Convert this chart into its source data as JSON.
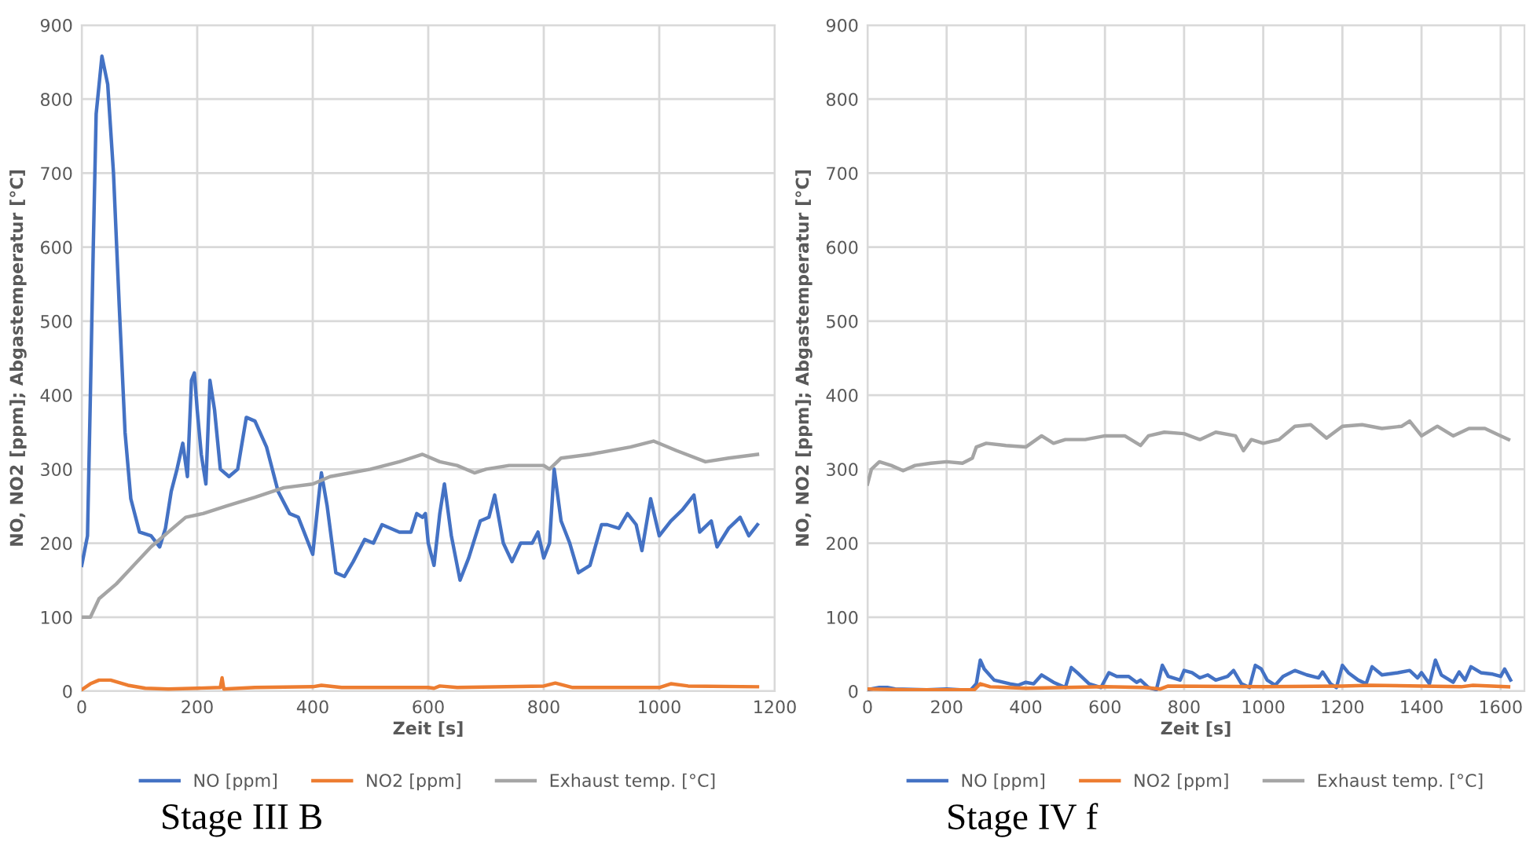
{
  "chart_data": [
    {
      "type": "line",
      "title": "Stage III B",
      "xlabel": "Zeit [s]",
      "ylabel": "NO, NO2 [ppm]; Abgastemperatur [°C]",
      "xlim": [
        0,
        1200
      ],
      "xticks": [
        0,
        200,
        400,
        600,
        800,
        1000,
        1200
      ],
      "ylim": [
        0,
        900
      ],
      "yticks": [
        0,
        100,
        200,
        300,
        400,
        500,
        600,
        700,
        800,
        900
      ],
      "grid": true,
      "legend": "bottom",
      "marker": "none",
      "line_style": "solid",
      "series": [
        {
          "name": "NO [ppm]",
          "color": "#4472c4",
          "x": [
            0,
            10,
            15,
            20,
            25,
            35,
            45,
            55,
            65,
            75,
            85,
            100,
            120,
            135,
            145,
            155,
            165,
            175,
            183,
            190,
            195,
            200,
            207,
            215,
            222,
            230,
            240,
            255,
            270,
            285,
            300,
            320,
            340,
            360,
            375,
            385,
            400,
            410,
            415,
            425,
            440,
            455,
            470,
            490,
            505,
            520,
            535,
            550,
            570,
            580,
            590,
            595,
            600,
            610,
            620,
            628,
            640,
            655,
            670,
            690,
            705,
            715,
            730,
            745,
            760,
            780,
            790,
            800,
            810,
            818,
            830,
            845,
            860,
            880,
            900,
            910,
            930,
            945,
            960,
            970,
            985,
            1000,
            1020,
            1040,
            1060,
            1070,
            1090,
            1100,
            1120,
            1140,
            1155,
            1170
          ],
          "values": [
            170,
            210,
            400,
            600,
            780,
            858,
            820,
            700,
            520,
            350,
            260,
            215,
            210,
            195,
            220,
            270,
            300,
            335,
            290,
            420,
            430,
            380,
            320,
            280,
            420,
            380,
            300,
            290,
            300,
            370,
            365,
            330,
            270,
            240,
            235,
            215,
            185,
            260,
            295,
            250,
            160,
            155,
            175,
            205,
            200,
            225,
            220,
            215,
            215,
            240,
            235,
            240,
            200,
            170,
            240,
            280,
            210,
            150,
            180,
            230,
            235,
            265,
            200,
            175,
            200,
            200,
            215,
            180,
            200,
            300,
            230,
            200,
            160,
            170,
            225,
            225,
            220,
            240,
            225,
            190,
            260,
            210,
            230,
            245,
            265,
            215,
            230,
            195,
            220,
            235,
            210,
            225
          ]
        },
        {
          "name": "NO2 [ppm]",
          "color": "#ed7d31",
          "x": [
            0,
            15,
            30,
            50,
            80,
            110,
            150,
            200,
            240,
            243,
            246,
            300,
            400,
            415,
            450,
            600,
            610,
            620,
            650,
            800,
            820,
            850,
            900,
            1000,
            1020,
            1050,
            1170
          ],
          "values": [
            2,
            10,
            15,
            15,
            8,
            4,
            3,
            4,
            5,
            18,
            3,
            5,
            6,
            8,
            5,
            5,
            4,
            7,
            5,
            7,
            11,
            5,
            5,
            5,
            10,
            7,
            6
          ]
        },
        {
          "name": "Exhaust temp. [°C]",
          "color": "#a5a5a5",
          "x": [
            0,
            15,
            30,
            60,
            90,
            120,
            150,
            180,
            210,
            250,
            300,
            350,
            400,
            430,
            500,
            550,
            590,
            620,
            650,
            680,
            700,
            740,
            800,
            810,
            830,
            880,
            950,
            990,
            1030,
            1080,
            1120,
            1170
          ],
          "values": [
            100,
            100,
            125,
            145,
            170,
            195,
            215,
            235,
            240,
            250,
            262,
            275,
            280,
            290,
            300,
            310,
            320,
            310,
            305,
            295,
            300,
            305,
            305,
            300,
            315,
            320,
            330,
            338,
            325,
            310,
            315,
            320
          ]
        }
      ]
    },
    {
      "type": "line",
      "title": "Stage IV f",
      "xlabel": "Zeit [s]",
      "ylabel": "NO, NO2 [ppm]; Abgastemperatur [°C]",
      "xlim": [
        0,
        1660
      ],
      "xticks": [
        0,
        200,
        400,
        600,
        800,
        1000,
        1200,
        1400,
        1600
      ],
      "ylim": [
        0,
        900
      ],
      "yticks": [
        0,
        100,
        200,
        300,
        400,
        500,
        600,
        700,
        800,
        900
      ],
      "grid": true,
      "legend": "bottom",
      "marker": "none",
      "line_style": "solid",
      "series": [
        {
          "name": "NO [ppm]",
          "color": "#4472c4",
          "x": [
            0,
            30,
            50,
            70,
            150,
            200,
            260,
            275,
            285,
            295,
            320,
            360,
            380,
            400,
            420,
            440,
            470,
            500,
            515,
            530,
            560,
            590,
            610,
            630,
            660,
            680,
            690,
            710,
            730,
            745,
            760,
            790,
            800,
            820,
            840,
            860,
            880,
            910,
            925,
            945,
            965,
            980,
            995,
            1010,
            1030,
            1050,
            1080,
            1110,
            1140,
            1150,
            1170,
            1185,
            1200,
            1215,
            1240,
            1260,
            1275,
            1300,
            1340,
            1370,
            1390,
            1400,
            1420,
            1435,
            1450,
            1480,
            1495,
            1510,
            1525,
            1550,
            1580,
            1600,
            1610,
            1625
          ],
          "values": [
            2,
            5,
            5,
            3,
            2,
            3,
            1,
            10,
            42,
            30,
            15,
            10,
            8,
            12,
            10,
            22,
            12,
            5,
            32,
            25,
            10,
            5,
            25,
            20,
            20,
            12,
            15,
            5,
            2,
            35,
            20,
            15,
            28,
            25,
            18,
            22,
            15,
            20,
            28,
            10,
            5,
            35,
            30,
            15,
            8,
            20,
            28,
            22,
            18,
            26,
            10,
            5,
            35,
            25,
            15,
            10,
            33,
            22,
            25,
            28,
            18,
            25,
            10,
            42,
            22,
            12,
            26,
            15,
            33,
            25,
            23,
            20,
            30,
            15
          ]
        },
        {
          "name": "NO2 [ppm]",
          "color": "#ed7d31",
          "x": [
            0,
            100,
            200,
            270,
            285,
            310,
            400,
            500,
            600,
            700,
            740,
            760,
            1000,
            1200,
            1270,
            1400,
            1500,
            1530,
            1620
          ],
          "values": [
            3,
            2,
            2,
            2,
            10,
            6,
            4,
            5,
            6,
            5,
            3,
            7,
            6,
            7,
            8,
            7,
            6,
            8,
            6
          ]
        },
        {
          "name": "Exhaust temp. [°C]",
          "color": "#a5a5a5",
          "x": [
            0,
            10,
            30,
            60,
            90,
            120,
            160,
            200,
            240,
            265,
            275,
            300,
            350,
            400,
            440,
            470,
            500,
            550,
            600,
            650,
            690,
            710,
            750,
            800,
            840,
            880,
            930,
            950,
            970,
            1000,
            1040,
            1080,
            1120,
            1160,
            1200,
            1250,
            1300,
            1350,
            1370,
            1400,
            1440,
            1480,
            1520,
            1560,
            1600,
            1620
          ],
          "values": [
            280,
            300,
            310,
            305,
            298,
            305,
            308,
            310,
            308,
            315,
            330,
            335,
            332,
            330,
            345,
            335,
            340,
            340,
            345,
            345,
            332,
            345,
            350,
            348,
            340,
            350,
            345,
            325,
            340,
            335,
            340,
            358,
            360,
            342,
            358,
            360,
            355,
            358,
            365,
            345,
            358,
            345,
            355,
            355,
            345,
            340
          ]
        }
      ]
    }
  ]
}
